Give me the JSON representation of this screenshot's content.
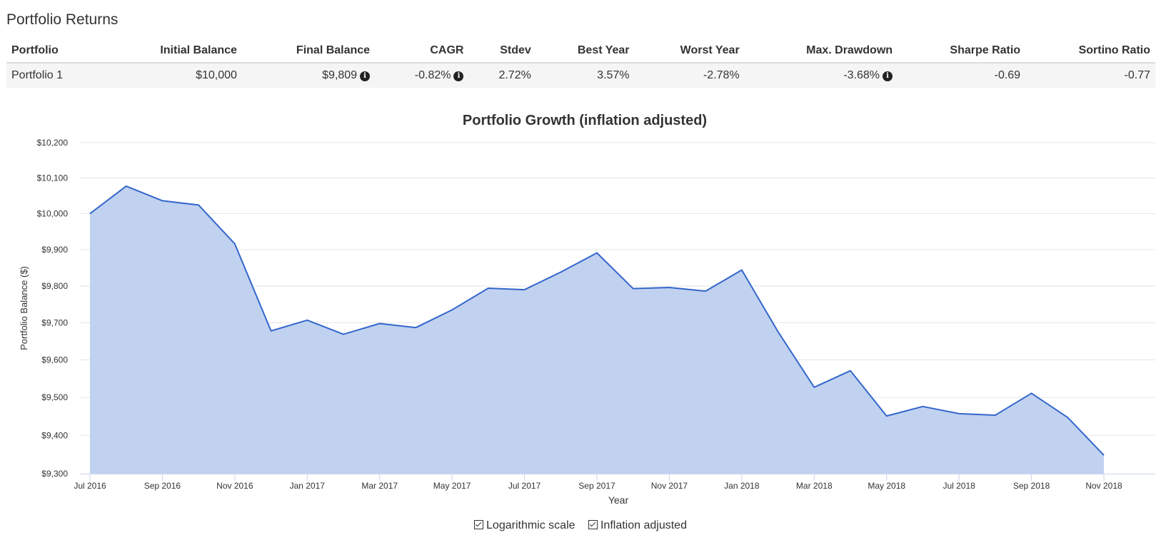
{
  "section_title": "Portfolio Returns",
  "table": {
    "headers": [
      "Portfolio",
      "Initial Balance",
      "Final Balance",
      "CAGR",
      "Stdev",
      "Best Year",
      "Worst Year",
      "Max. Drawdown",
      "Sharpe Ratio",
      "Sortino Ratio"
    ],
    "row": {
      "portfolio": "Portfolio 1",
      "initial_balance": "$10,000",
      "final_balance": "$9,809",
      "cagr": "-0.82%",
      "stdev": "2.72%",
      "best_year": "3.57%",
      "worst_year": "-2.78%",
      "max_drawdown": "-3.68%",
      "sharpe_ratio": "-0.69",
      "sortino_ratio": "-0.77"
    },
    "info_icon": "info-icon"
  },
  "chart_data": {
    "type": "area",
    "title": "Portfolio Growth (inflation adjusted)",
    "xlabel": "Year",
    "ylabel": "Portfolio Balance ($)",
    "ylim": [
      9300,
      10200
    ],
    "yticks": [
      9300,
      9400,
      9500,
      9600,
      9700,
      9800,
      9900,
      10000,
      10100,
      10200
    ],
    "ytick_labels": [
      "$9,300",
      "$9,400",
      "$9,500",
      "$9,600",
      "$9,700",
      "$9,800",
      "$9,900",
      "$10,000",
      "$10,100",
      "$10,200"
    ],
    "xtick_labels": [
      "Jul 2016",
      "Sep 2016",
      "Nov 2016",
      "Jan 2017",
      "Mar 2017",
      "May 2017",
      "Jul 2017",
      "Sep 2017",
      "Nov 2017",
      "Jan 2018",
      "Mar 2018",
      "May 2018",
      "Jul 2018",
      "Sep 2018",
      "Nov 2018"
    ],
    "x": [
      "Jul 2016",
      "Aug 2016",
      "Sep 2016",
      "Oct 2016",
      "Nov 2016",
      "Dec 2016",
      "Jan 2017",
      "Feb 2017",
      "Mar 2017",
      "Apr 2017",
      "May 2017",
      "Jun 2017",
      "Jul 2017",
      "Aug 2017",
      "Sep 2017",
      "Oct 2017",
      "Nov 2017",
      "Dec 2017",
      "Jan 2018",
      "Feb 2018",
      "Mar 2018",
      "Apr 2018",
      "May 2018",
      "Jun 2018",
      "Jul 2018",
      "Aug 2018",
      "Sep 2018",
      "Oct 2018",
      "Nov 2018"
    ],
    "series": [
      {
        "values": [
          10000,
          10077,
          10036,
          10024,
          9916,
          9678,
          9707,
          9669,
          9698,
          9687,
          9735,
          9794,
          9790,
          9838,
          9891,
          9793,
          9796,
          9786,
          9844,
          9676,
          9527,
          9571,
          9451,
          9476,
          9457,
          9453,
          9511,
          9447,
          9348
        ],
        "color": "#3366cc",
        "fill": "#c1d2f0"
      }
    ],
    "grid": true,
    "legend": "none"
  },
  "options": {
    "log_scale": "Logarithmic scale",
    "inflation_adjusted": "Inflation adjusted"
  }
}
